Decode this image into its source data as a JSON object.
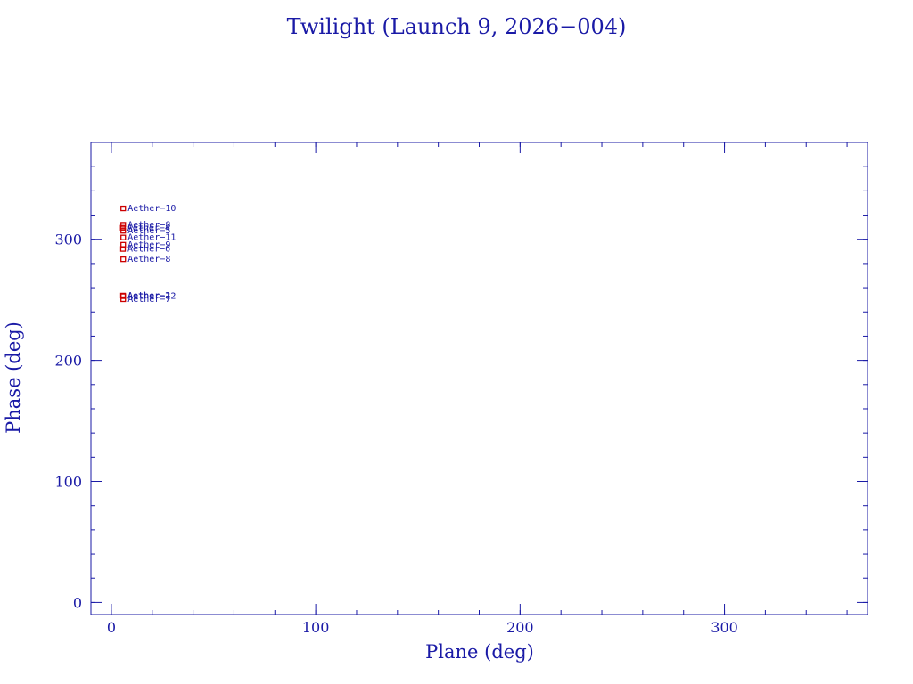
{
  "chart_data": {
    "type": "scatter",
    "title": "Twilight (Launch 9, 2026−004)",
    "xlabel": "Plane (deg)",
    "ylabel": "Phase (deg)",
    "xlim": [
      -10,
      370
    ],
    "ylim": [
      -10,
      380
    ],
    "xticks": [
      0,
      100,
      200,
      300
    ],
    "yticks": [
      0,
      100,
      200,
      300
    ],
    "x_tick_labels": [
      "0",
      "100",
      "200",
      "300"
    ],
    "y_tick_labels": [
      "0",
      "100",
      "200",
      "300"
    ],
    "x_minor_step": 20,
    "y_minor_step": 20,
    "grid": false,
    "colors": {
      "axis": "#1a1aa6",
      "marker": "#cc0000",
      "label": "#1a1aa6"
    },
    "points": [
      {
        "label": "Aether−10",
        "x": 5.8,
        "y": 325.5
      },
      {
        "label": "Aether−8",
        "x": 5.8,
        "y": 312.0
      },
      {
        "label": "Aether−4",
        "x": 5.6,
        "y": 309.5
      },
      {
        "label": "Aether−5",
        "x": 5.8,
        "y": 307.0
      },
      {
        "label": "Aether−11",
        "x": 5.8,
        "y": 301.5
      },
      {
        "label": "Aether−9",
        "x": 5.8,
        "y": 295.5
      },
      {
        "label": "Aether−6",
        "x": 5.7,
        "y": 292.0
      },
      {
        "label": "Aether−8",
        "x": 5.8,
        "y": 283.5
      },
      {
        "label": "Aether−2",
        "x": 5.7,
        "y": 253.5
      },
      {
        "label": "Aether−12",
        "x": 5.8,
        "y": 253.0
      },
      {
        "label": "Aether−7",
        "x": 5.8,
        "y": 250.5
      }
    ]
  }
}
